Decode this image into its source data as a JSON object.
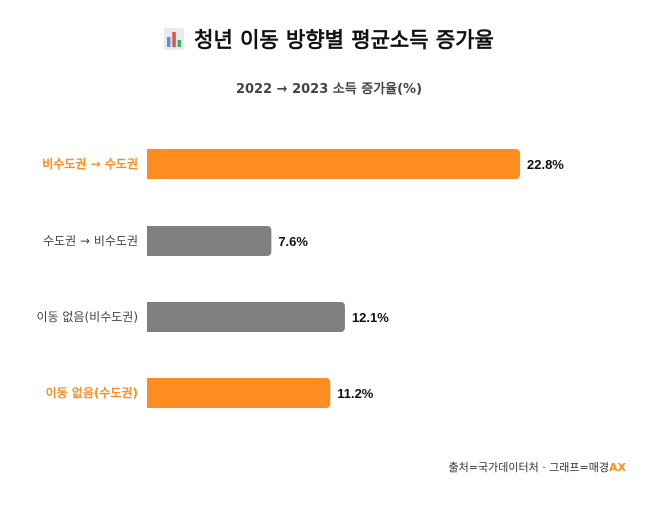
{
  "title": "청년 이동 방향별 평균소득 증가율",
  "title_icon": "bar-chart-icon",
  "subtitle": "2022 → 2023 소득 증가율(%)",
  "source": {
    "text": "출처=국가데이터처 · 그래프=매경",
    "brand": "AX"
  },
  "colors": {
    "highlight": "#ff8c1f",
    "neutral": "#808080",
    "highlight_label": "#ff8c1f",
    "neutral_label": "#444444"
  },
  "chart_data": {
    "type": "bar",
    "orientation": "horizontal",
    "title": "청년 이동 방향별 평균소득 증가율",
    "subtitle": "2022 → 2023 소득 증가율(%)",
    "categories": [
      "비수도권 → 수도권",
      "수도권 → 비수도권",
      "이동 없음(비수도권)",
      "이동 없음(수도권)"
    ],
    "values": [
      22.8,
      7.6,
      12.1,
      11.2
    ],
    "labels": [
      "22.8%",
      "7.6%",
      "12.1%",
      "11.2%"
    ],
    "highlight": [
      true,
      false,
      false,
      true
    ],
    "xlim": [
      0,
      30
    ],
    "unit": "%",
    "grid": false
  }
}
